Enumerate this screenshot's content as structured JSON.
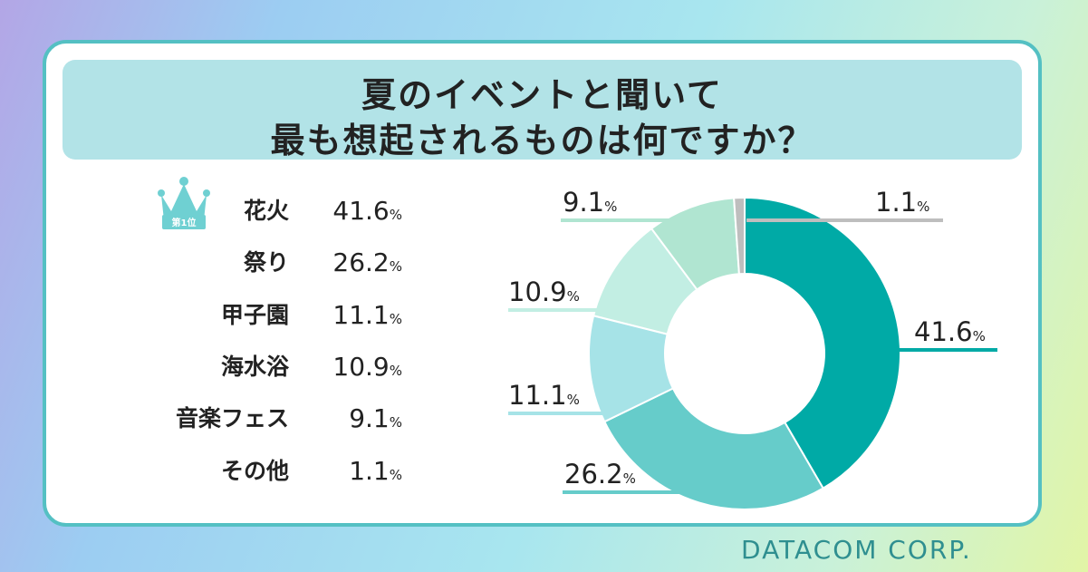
{
  "title": {
    "line1": "夏のイベントと聞いて",
    "line2": "最も想起されるものは何ですか？"
  },
  "rank_badge": "第1位",
  "brand": "DATACOM CORP.",
  "percent_sign": "%",
  "colors": {
    "border": "#54c0c3",
    "title_band": "#b2e3e7",
    "brand_text": "#2f8f90",
    "slices": [
      "#00aaa6",
      "#66ccca",
      "#a6e3e7",
      "#c2eee3",
      "#b0e5d1",
      "#bebebe"
    ]
  },
  "chart_data": {
    "type": "pie",
    "donut": true,
    "title": "",
    "categories": [
      "花火",
      "祭り",
      "甲子園",
      "海水浴",
      "音楽フェス",
      "その他"
    ],
    "values": [
      41.6,
      26.2,
      11.1,
      10.9,
      9.1,
      1.1
    ],
    "value_labels": [
      "41.6",
      "26.2",
      "11.1",
      "10.9",
      "9.1",
      "1.1"
    ],
    "unit": "%",
    "legend_position": "left",
    "start": "12 o'clock",
    "direction": "clockwise"
  }
}
